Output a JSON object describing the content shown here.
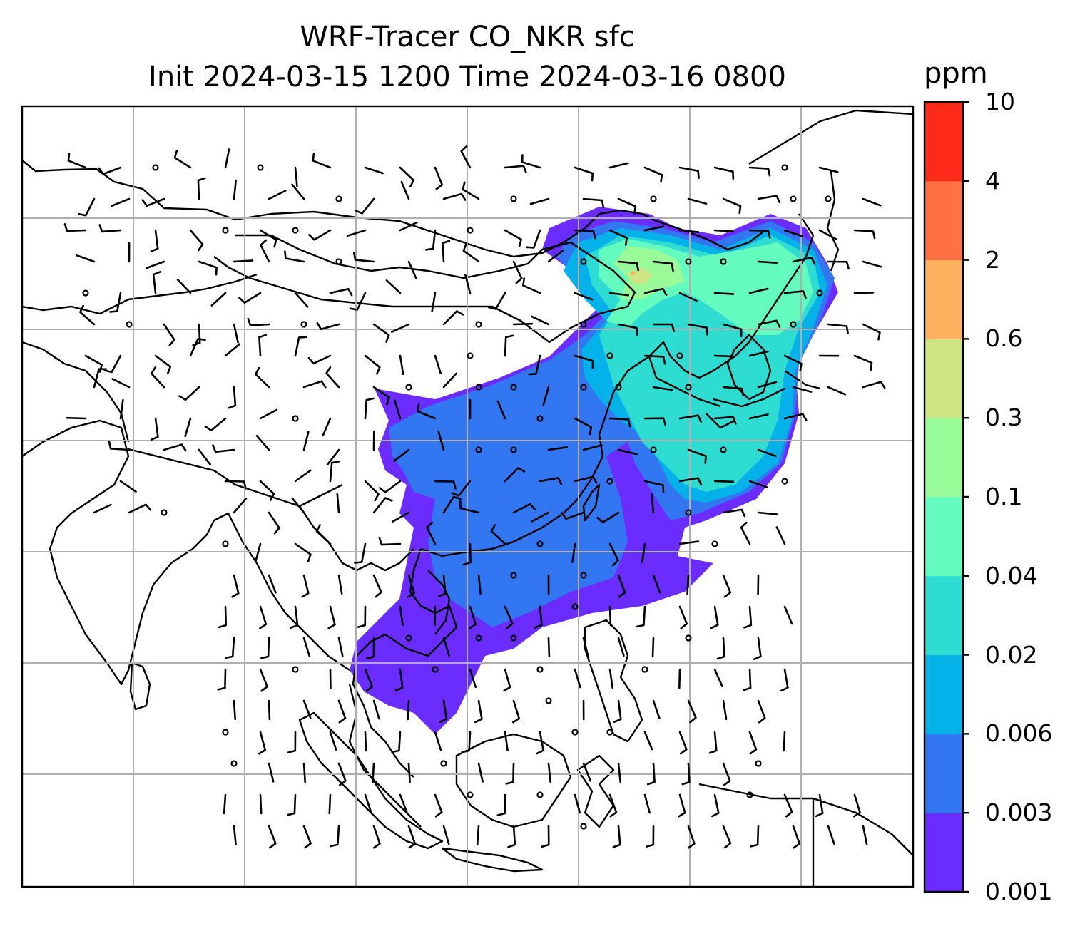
{
  "title": {
    "line1": "WRF-Tracer CO_NKR sfc",
    "line2": "Init 2024-03-15 1200 Time 2024-03-16 0800"
  },
  "colorbar": {
    "unit": "ppm",
    "levels": [
      "0.001",
      "0.003",
      "0.006",
      "0.02",
      "0.04",
      "0.1",
      "0.3",
      "0.6",
      "2",
      "4",
      "10"
    ],
    "colors": [
      "#6a2cff",
      "#3376f2",
      "#04b1e9",
      "#2fdcd2",
      "#63fbbe",
      "#99fa98",
      "#cee384",
      "#fdb15e",
      "#ff7143",
      "#ff2a1a"
    ]
  },
  "map": {
    "tracer": "CO_NKR",
    "level": "sfc",
    "gridlines": true,
    "overlay": "wind barbs",
    "basemap": "coastlines and country borders"
  }
}
